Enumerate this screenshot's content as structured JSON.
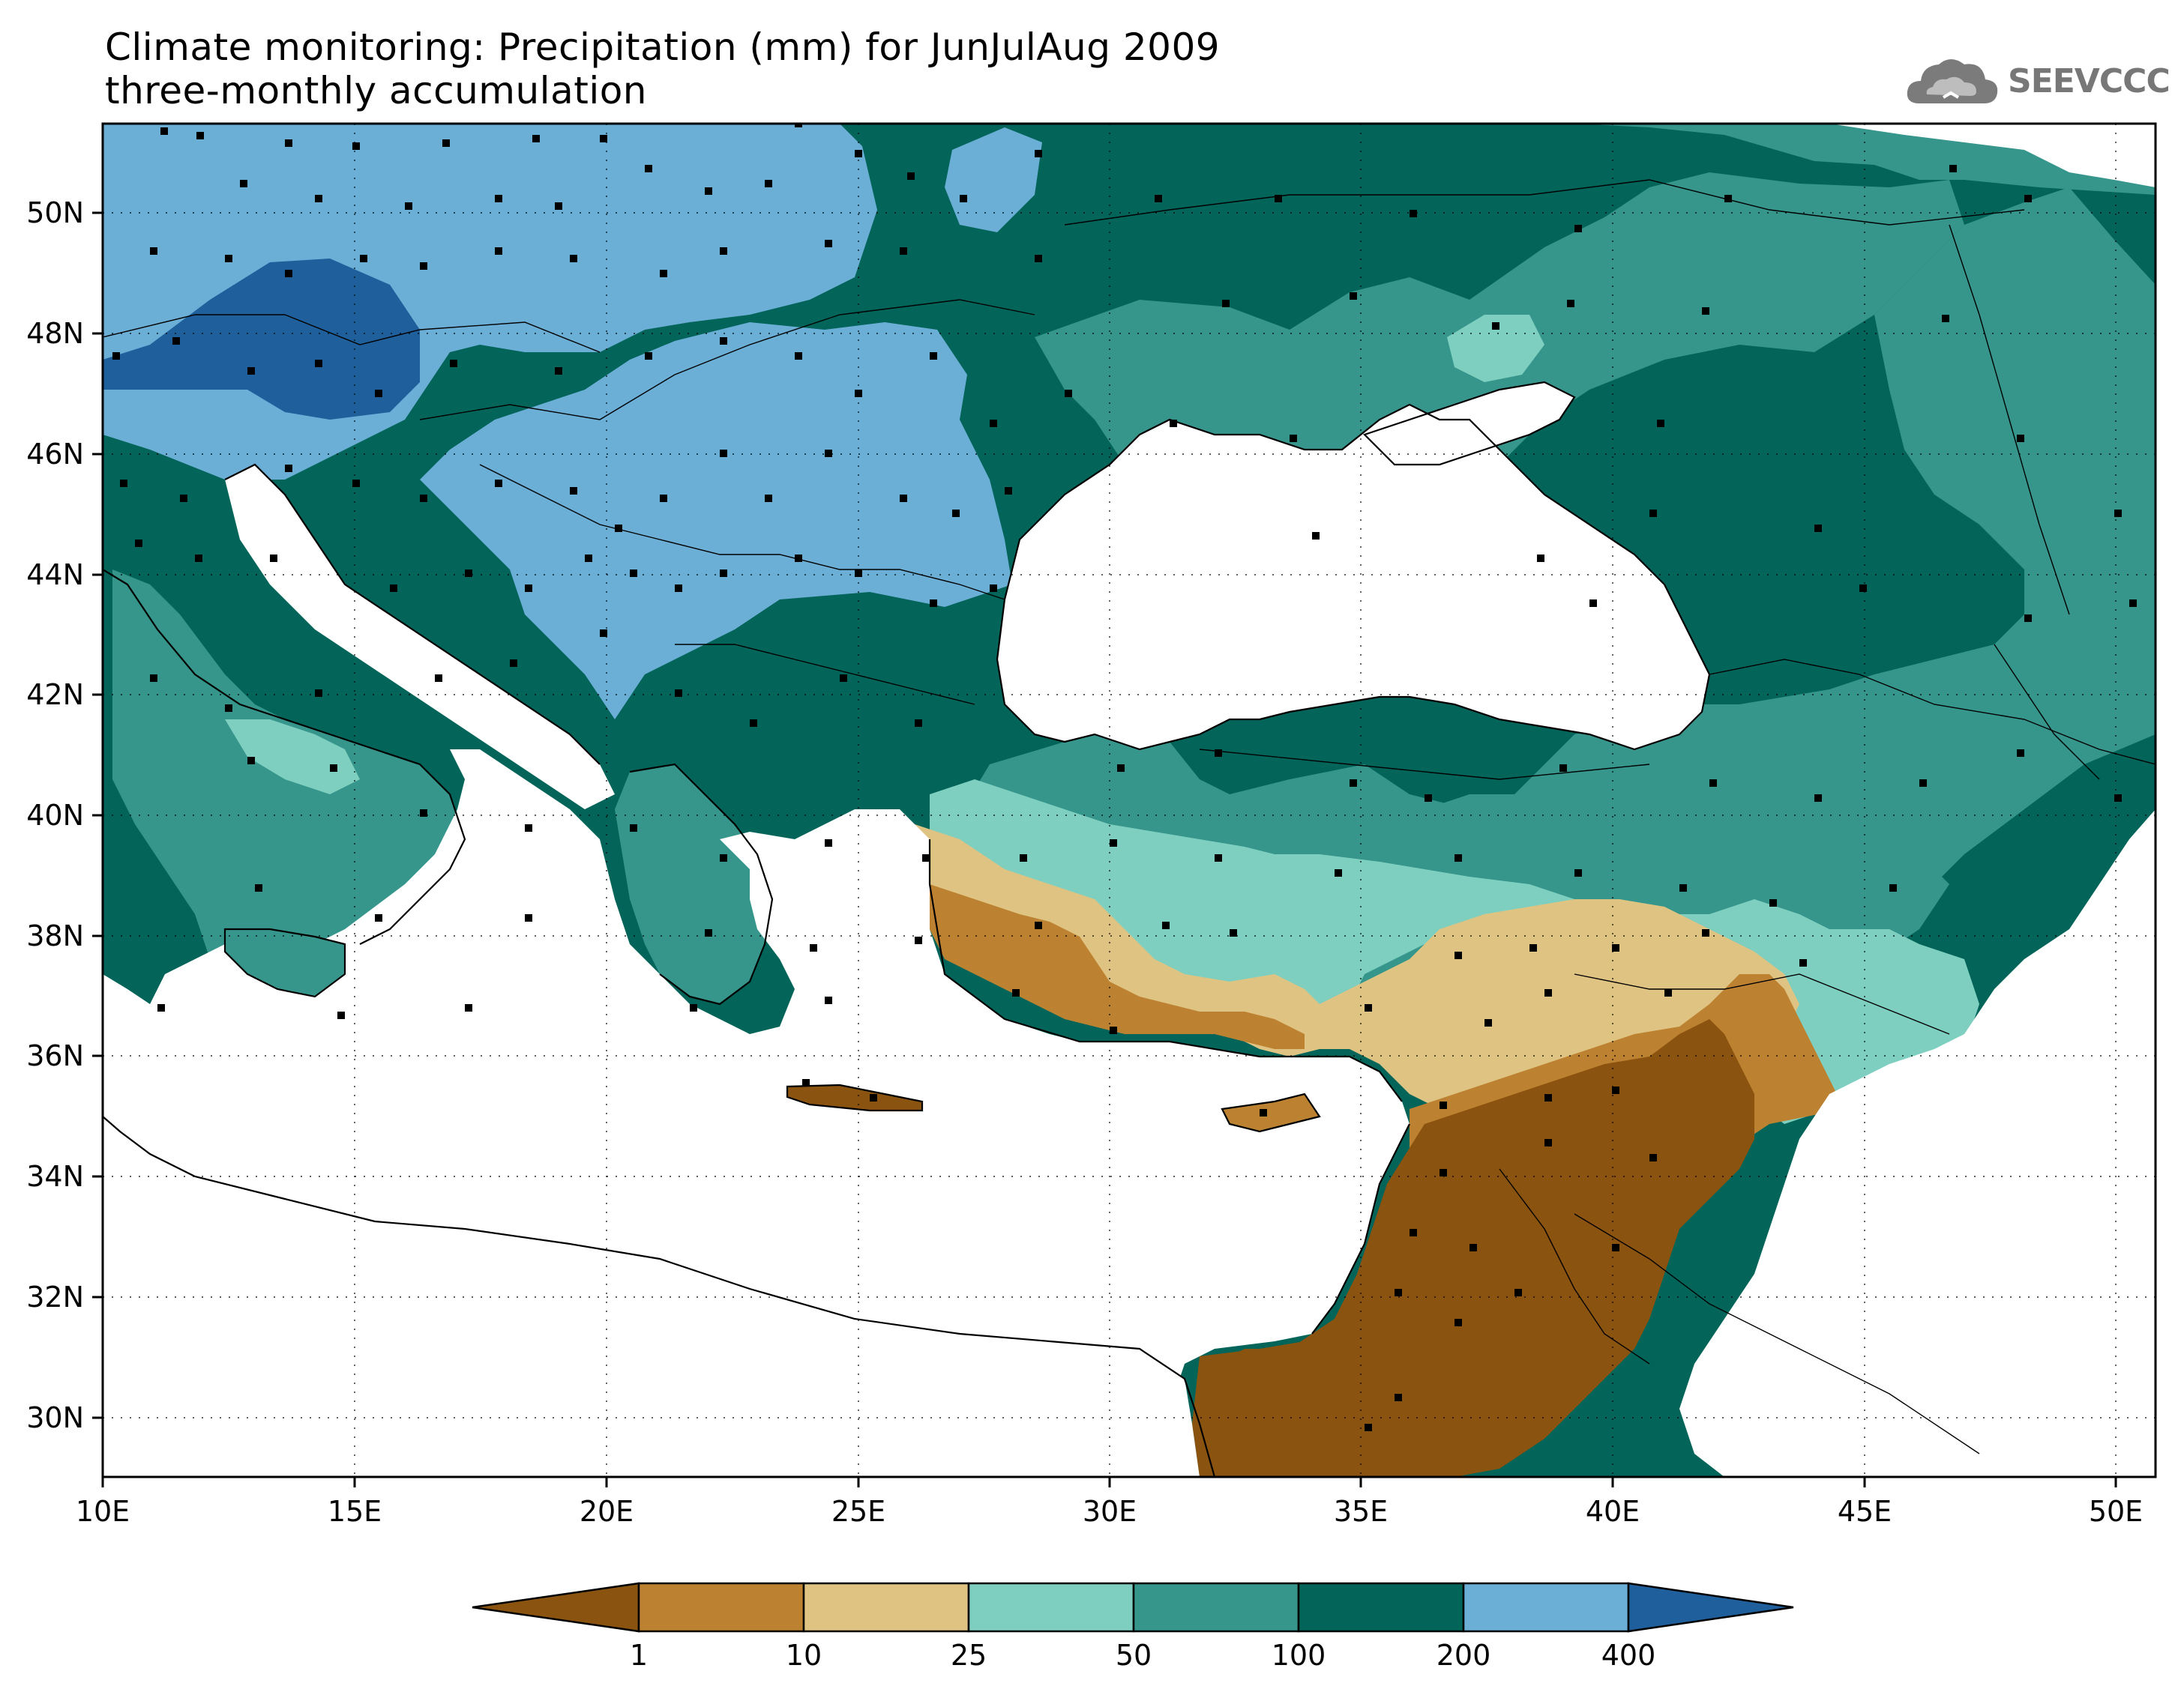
{
  "title": {
    "line1": "Climate monitoring: Precipitation (mm) for JunJulAug 2009",
    "line2": "three-monthly accumulation"
  },
  "logo": {
    "text": "SEEVCCC",
    "icon": "cloud-icon"
  },
  "map": {
    "x_ticks": [
      "10E",
      "15E",
      "20E",
      "25E",
      "30E",
      "35E",
      "40E",
      "45E",
      "50E"
    ],
    "y_ticks": [
      "50N",
      "48N",
      "46N",
      "44N",
      "42N",
      "40N",
      "38N",
      "36N",
      "34N",
      "32N",
      "30N"
    ],
    "lon_range": [
      10,
      51
    ],
    "lat_range": [
      29,
      51.5
    ]
  },
  "legend": {
    "labels": [
      "1",
      "10",
      "25",
      "50",
      "100",
      "200",
      "400"
    ],
    "colors": [
      "#8b5310",
      "#bd8231",
      "#dfc382",
      "#7fcfc0",
      "#36968c",
      "#036459",
      "#6baed6",
      "#1e5f9c"
    ]
  }
}
